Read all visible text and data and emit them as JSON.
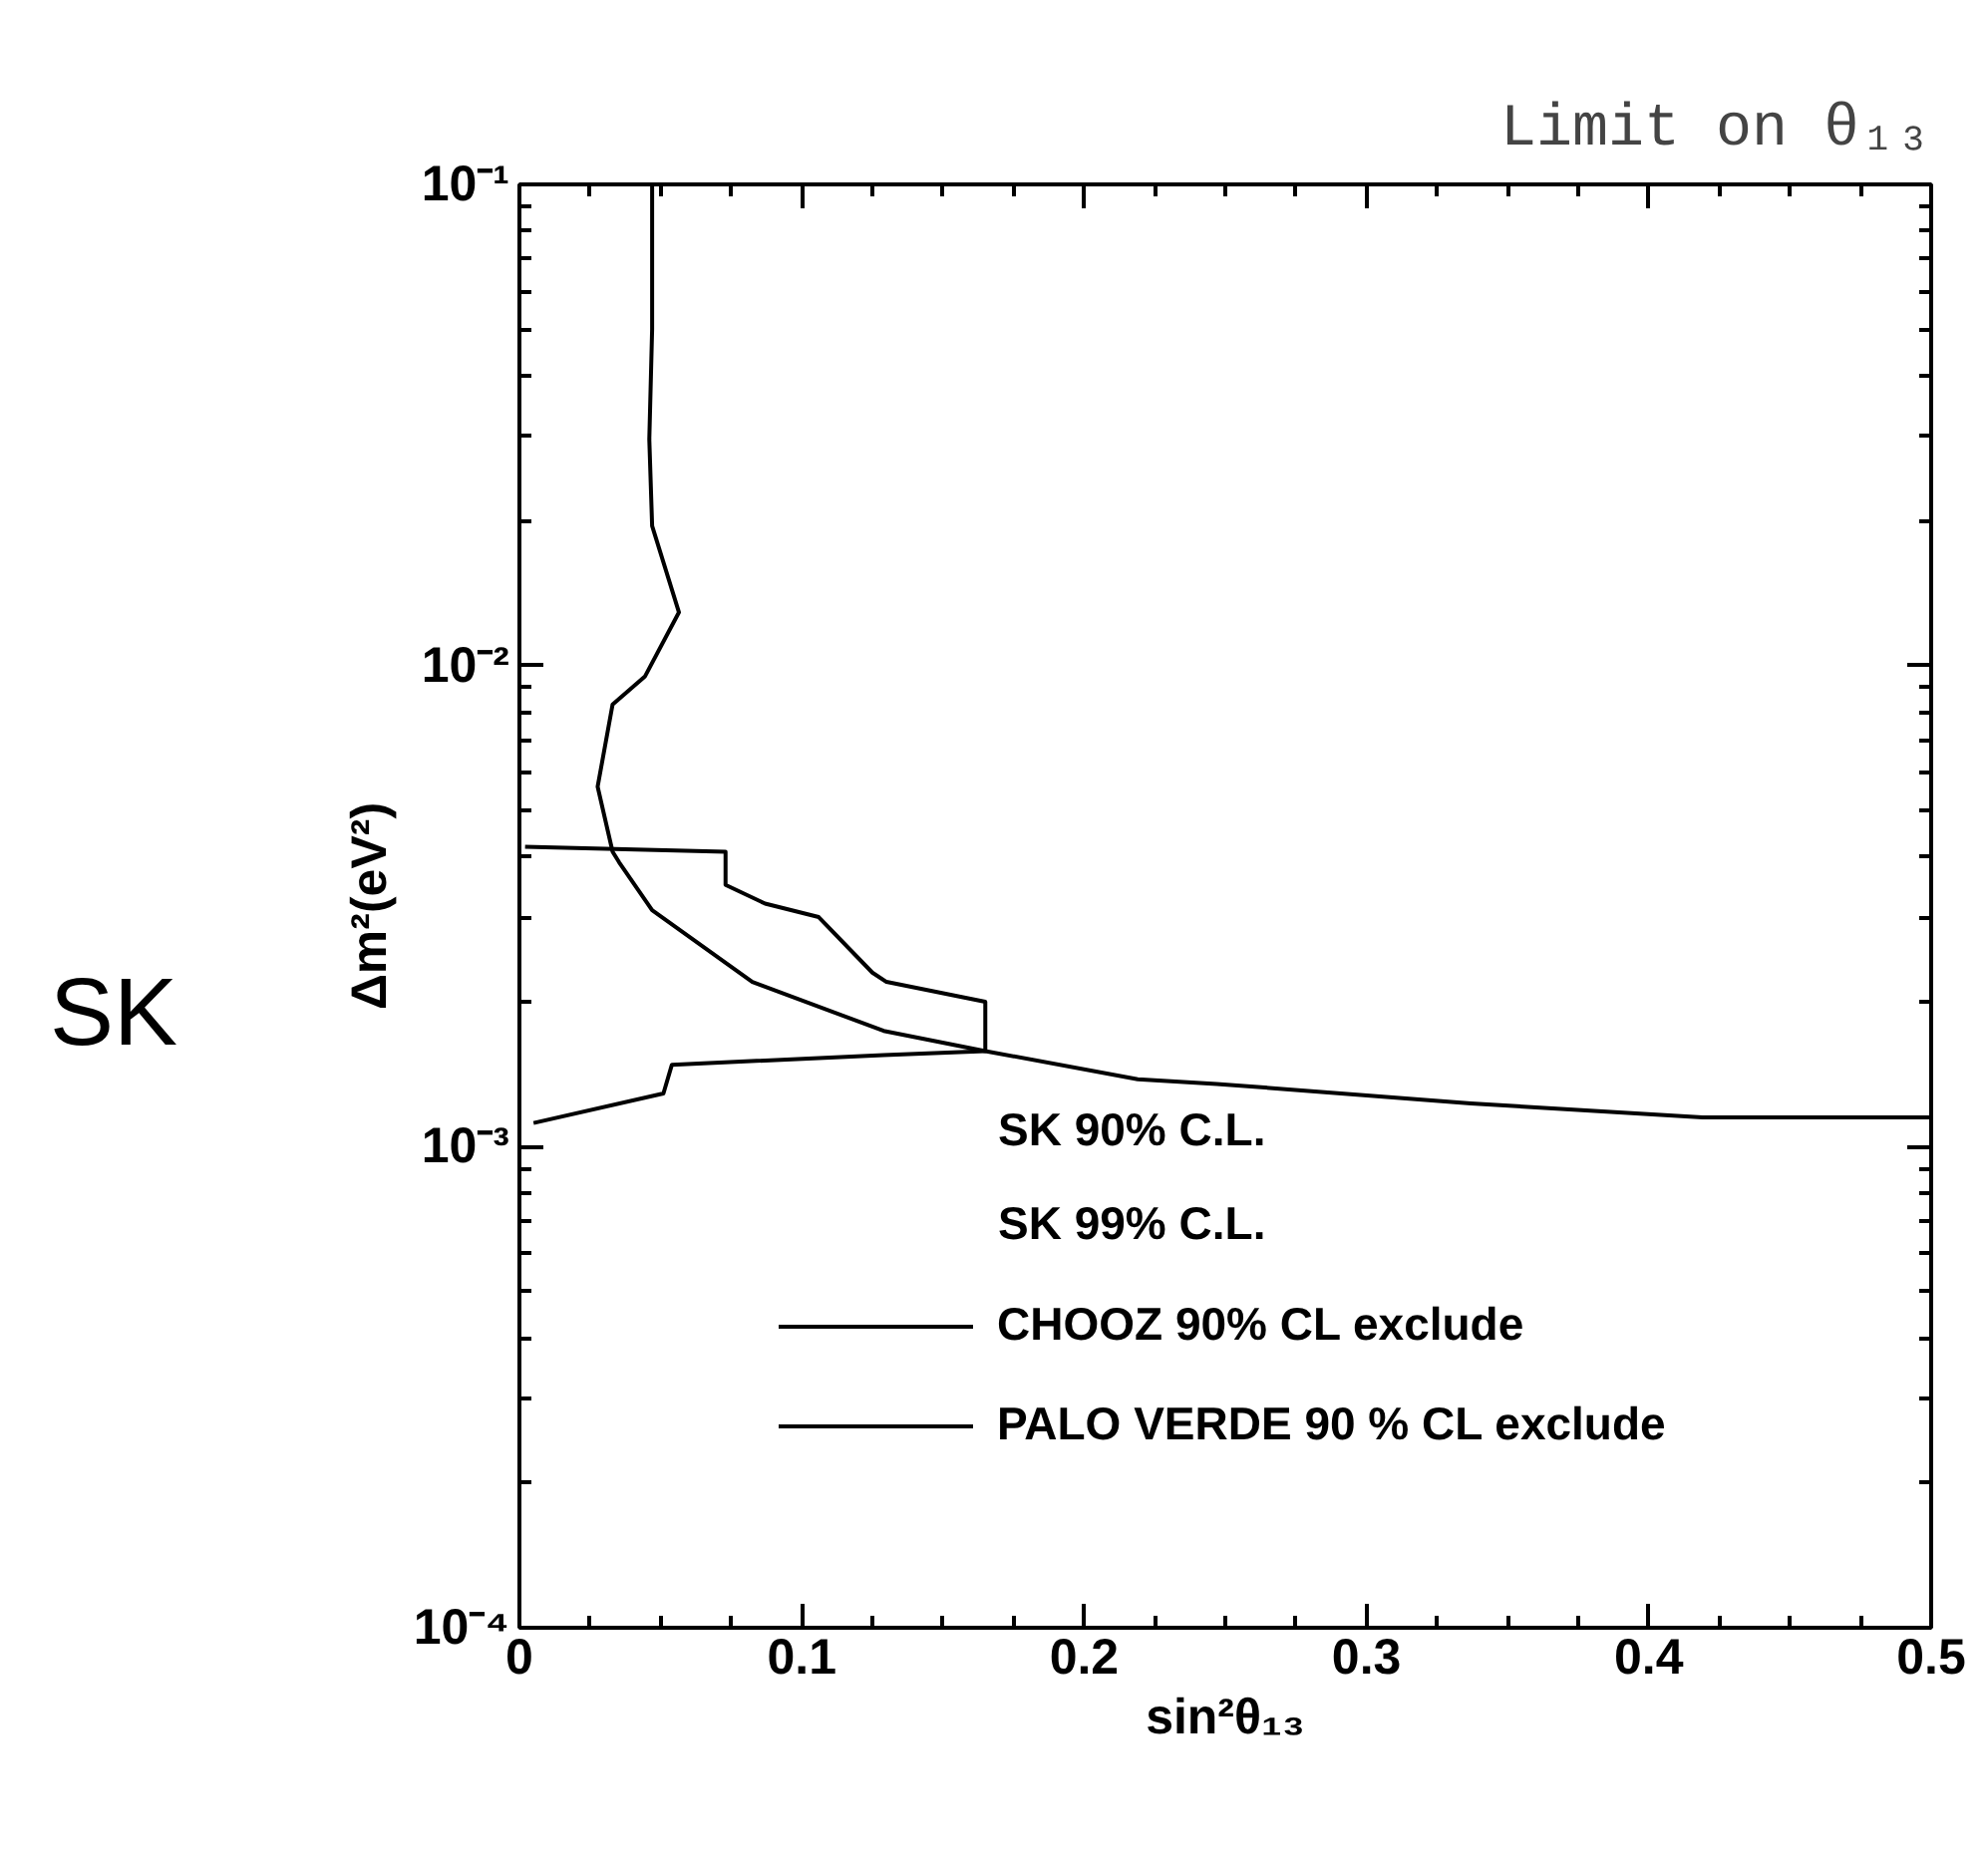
{
  "chart_data": {
    "type": "line",
    "title": "Limit on θ₁₃",
    "xlabel": "sin²θ₁₃",
    "ylabel": "Δm²(eV²)",
    "annotations": [
      "SK",
      "SK 90% C.L.",
      "SK 99% C.L."
    ],
    "log": "y",
    "xlim": [
      0,
      0.5
    ],
    "ylim": [
      0.0001,
      0.1
    ],
    "xticks": [
      0,
      0.1,
      0.2,
      0.3,
      0.4,
      0.5
    ],
    "yticks": [
      {
        "value": 0.0001,
        "label": "10⁻⁴"
      },
      {
        "value": 0.001,
        "label": "10⁻³"
      },
      {
        "value": 0.01,
        "label": "10⁻²"
      },
      {
        "value": 0.1,
        "label": "10⁻¹"
      }
    ],
    "grid": false,
    "legend": "bottom",
    "line_style": "solid",
    "series": [
      {
        "name": "CHOOZ 90% CL exclude",
        "color": "#000000",
        "x": [
          0.047,
          0.047,
          0.046,
          0.047,
          0.0565,
          0.0445,
          0.033,
          0.0277,
          0.033,
          0.0353,
          0.047,
          0.0825,
          0.129,
          0.165,
          0.219,
          0.247,
          0.337,
          0.419,
          0.5
        ],
        "values": [
          0.1,
          0.05,
          0.0295,
          0.0195,
          0.0129,
          0.0095,
          0.0083,
          0.0056,
          0.0041,
          0.0039,
          0.0031,
          0.0022,
          0.00174,
          0.00158,
          0.00138,
          0.00135,
          0.00123,
          0.00115,
          0.00115
        ]
      },
      {
        "name": "PALO VERDE 90 % CL exclude",
        "color": "#000000",
        "x": [
          0.002,
          0.073,
          0.073,
          0.087,
          0.106,
          0.125,
          0.13,
          0.165,
          0.165,
          0.129,
          0.054,
          0.051,
          0.005
        ],
        "values": [
          0.0042,
          0.0041,
          0.0035,
          0.0032,
          0.003,
          0.0023,
          0.0022,
          0.002,
          0.00158,
          0.00155,
          0.00148,
          0.00129,
          0.00112
        ]
      }
    ]
  }
}
